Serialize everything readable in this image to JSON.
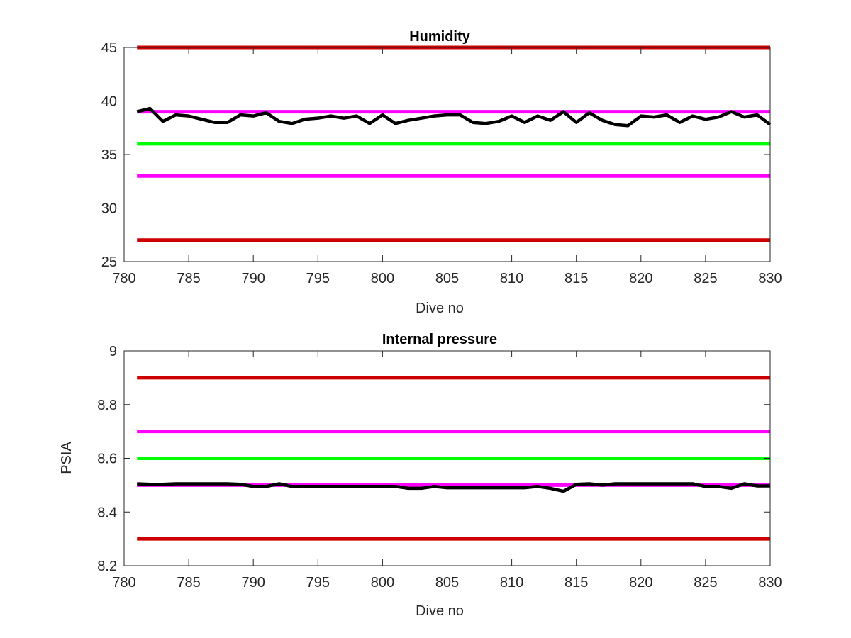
{
  "colors": {
    "red": "#cc0000",
    "magenta": "#ff00ff",
    "green": "#00ff00",
    "data": "#000000",
    "axis": "#262626"
  },
  "chart_data": [
    {
      "type": "line",
      "title": "Humidity",
      "xlabel": "Dive no",
      "ylabel": "",
      "xlim": [
        780,
        830
      ],
      "ylim": [
        25,
        45
      ],
      "xticks": [
        780,
        785,
        790,
        795,
        800,
        805,
        810,
        815,
        820,
        825,
        830
      ],
      "yticks": [
        25,
        30,
        35,
        40,
        45
      ],
      "reference_lines": [
        {
          "y": 45,
          "color": "red"
        },
        {
          "y": 39,
          "color": "magenta"
        },
        {
          "y": 36,
          "color": "green"
        },
        {
          "y": 33,
          "color": "magenta"
        },
        {
          "y": 27,
          "color": "red"
        }
      ],
      "series": [
        {
          "color": "data",
          "x": [
            781,
            782,
            783,
            784,
            785,
            786,
            787,
            788,
            789,
            790,
            791,
            792,
            793,
            794,
            795,
            796,
            797,
            798,
            799,
            800,
            801,
            802,
            803,
            804,
            805,
            806,
            807,
            808,
            809,
            810,
            811,
            812,
            813,
            814,
            815,
            816,
            817,
            818,
            819,
            820,
            821,
            822,
            823,
            824,
            825,
            826,
            827,
            828,
            829,
            830
          ],
          "y": [
            39.0,
            39.3,
            38.1,
            38.7,
            38.6,
            38.3,
            38.0,
            38.0,
            38.7,
            38.6,
            38.9,
            38.1,
            37.9,
            38.3,
            38.4,
            38.6,
            38.4,
            38.6,
            37.9,
            38.7,
            37.9,
            38.2,
            38.4,
            38.6,
            38.7,
            38.7,
            38.0,
            37.9,
            38.1,
            38.6,
            38.0,
            38.6,
            38.2,
            39.0,
            38.0,
            38.9,
            38.2,
            37.8,
            37.7,
            38.6,
            38.5,
            38.7,
            38.0,
            38.6,
            38.3,
            38.5,
            39.0,
            38.5,
            38.7,
            37.8
          ]
        }
      ]
    },
    {
      "type": "line",
      "title": "Internal pressure",
      "xlabel": "Dive no",
      "ylabel": "PSIA",
      "xlim": [
        780,
        830
      ],
      "ylim": [
        8.2,
        9
      ],
      "xticks": [
        780,
        785,
        790,
        795,
        800,
        805,
        810,
        815,
        820,
        825,
        830
      ],
      "yticks": [
        "8.2",
        "8.4",
        "8.6",
        "8.8",
        "9"
      ],
      "reference_lines": [
        {
          "y": 8.9,
          "color": "red"
        },
        {
          "y": 8.7,
          "color": "magenta"
        },
        {
          "y": 8.6,
          "color": "green"
        },
        {
          "y": 8.5,
          "color": "magenta"
        },
        {
          "y": 8.3,
          "color": "red"
        }
      ],
      "series": [
        {
          "color": "data",
          "x": [
            781,
            782,
            783,
            784,
            785,
            786,
            787,
            788,
            789,
            790,
            791,
            792,
            793,
            794,
            795,
            796,
            797,
            798,
            799,
            800,
            801,
            802,
            803,
            804,
            805,
            806,
            807,
            808,
            809,
            810,
            811,
            812,
            813,
            814,
            815,
            816,
            817,
            818,
            819,
            820,
            821,
            822,
            823,
            824,
            825,
            826,
            827,
            828,
            829,
            830
          ],
          "y": [
            8.505,
            8.503,
            8.503,
            8.505,
            8.505,
            8.505,
            8.505,
            8.505,
            8.503,
            8.495,
            8.495,
            8.505,
            8.495,
            8.495,
            8.495,
            8.495,
            8.495,
            8.495,
            8.495,
            8.495,
            8.495,
            8.488,
            8.488,
            8.495,
            8.49,
            8.49,
            8.49,
            8.49,
            8.49,
            8.49,
            8.49,
            8.495,
            8.488,
            8.477,
            8.503,
            8.505,
            8.5,
            8.505,
            8.505,
            8.505,
            8.505,
            8.505,
            8.505,
            8.505,
            8.495,
            8.495,
            8.488,
            8.505,
            8.497,
            8.497
          ]
        }
      ]
    }
  ]
}
